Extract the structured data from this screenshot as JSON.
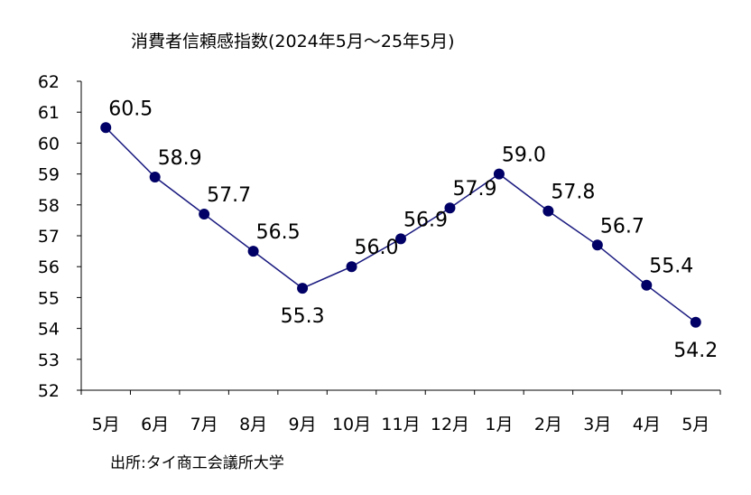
{
  "chart_data": {
    "type": "line",
    "title": "消費者信頼感指数(2024年5月～25年5月)",
    "categories": [
      "5月",
      "6月",
      "7月",
      "8月",
      "9月",
      "10月",
      "11月",
      "12月",
      "1月",
      "2月",
      "3月",
      "4月",
      "5月"
    ],
    "series": [
      {
        "values": [
          60.5,
          58.9,
          57.7,
          56.5,
          55.3,
          56.0,
          56.9,
          57.9,
          59.0,
          57.8,
          56.7,
          55.4,
          54.2
        ]
      }
    ],
    "data_labels": [
      "60.5",
      "58.9",
      "57.7",
      "56.5",
      "55.3",
      "56.0",
      "56.9",
      "57.9",
      "59.0",
      "57.8",
      "56.7",
      "55.4",
      "54.2"
    ],
    "yticks": [
      "52",
      "53",
      "54",
      "55",
      "56",
      "57",
      "58",
      "59",
      "60",
      "61",
      "62"
    ],
    "ylim": [
      52,
      62
    ],
    "grid": false,
    "colors": {
      "line": "#1a1a80",
      "marker": "#000066"
    },
    "source": "出所:タイ商工会議所大学"
  }
}
